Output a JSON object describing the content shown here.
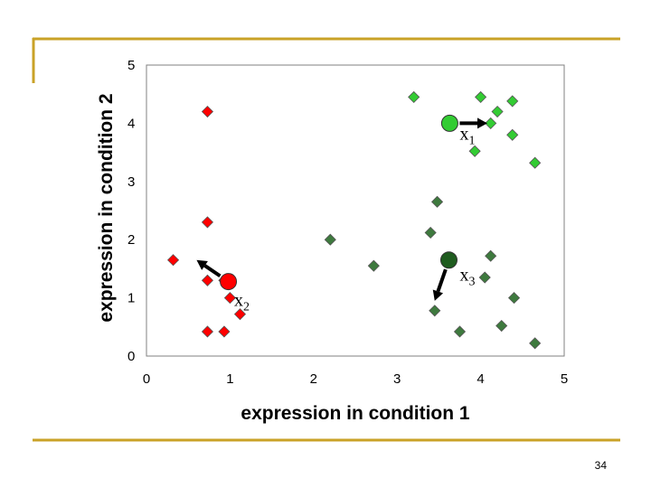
{
  "slide": {
    "page_number": "34",
    "accent_color": "#c9a227"
  },
  "chart_data": {
    "type": "scatter",
    "title": "",
    "xlabel": "expression in condition 1",
    "ylabel": "expression in condition 2",
    "xlim": [
      0,
      5
    ],
    "ylim": [
      0,
      5
    ],
    "x_ticks": [
      0,
      1,
      2,
      3,
      4,
      5
    ],
    "y_ticks": [
      0,
      1,
      2,
      3,
      4,
      5
    ],
    "grid": false,
    "series": [
      {
        "name": "red cluster",
        "marker": "diamond",
        "color": "#ff0000",
        "points": [
          {
            "x": 0.73,
            "y": 4.2
          },
          {
            "x": 0.73,
            "y": 2.3
          },
          {
            "x": 0.32,
            "y": 1.65
          },
          {
            "x": 0.73,
            "y": 1.3
          },
          {
            "x": 0.93,
            "y": 1.3
          },
          {
            "x": 1.0,
            "y": 1.0
          },
          {
            "x": 1.12,
            "y": 0.72
          },
          {
            "x": 0.73,
            "y": 0.42
          },
          {
            "x": 0.93,
            "y": 0.42
          }
        ]
      },
      {
        "name": "light green cluster",
        "marker": "diamond",
        "color": "#33cc33",
        "points": [
          {
            "x": 3.2,
            "y": 4.45
          },
          {
            "x": 4.0,
            "y": 4.45
          },
          {
            "x": 4.38,
            "y": 4.38
          },
          {
            "x": 4.2,
            "y": 4.2
          },
          {
            "x": 4.12,
            "y": 4.0
          },
          {
            "x": 3.93,
            "y": 3.52
          },
          {
            "x": 4.38,
            "y": 3.8
          },
          {
            "x": 4.65,
            "y": 3.32
          }
        ]
      },
      {
        "name": "dark green cluster",
        "marker": "diamond",
        "color": "#3e7a3e",
        "points": [
          {
            "x": 2.2,
            "y": 2.0
          },
          {
            "x": 2.72,
            "y": 1.55
          },
          {
            "x": 3.48,
            "y": 2.65
          },
          {
            "x": 3.4,
            "y": 2.12
          },
          {
            "x": 4.12,
            "y": 1.72
          },
          {
            "x": 4.05,
            "y": 1.35
          },
          {
            "x": 3.45,
            "y": 0.78
          },
          {
            "x": 3.75,
            "y": 0.42
          },
          {
            "x": 4.25,
            "y": 0.52
          },
          {
            "x": 4.4,
            "y": 1.0
          },
          {
            "x": 4.65,
            "y": 0.22
          }
        ]
      }
    ],
    "centroids": [
      {
        "label": "x",
        "sub": "1",
        "x": 3.63,
        "y": 4.0,
        "color": "#33cc33",
        "move_to": {
          "x": 4.08,
          "y": 4.0
        },
        "label_at": {
          "x": 3.75,
          "y": 3.72
        }
      },
      {
        "label": "x",
        "sub": "2",
        "x": 0.98,
        "y": 1.28,
        "color": "#ff0000",
        "move_to": {
          "x": 0.6,
          "y": 1.65
        },
        "label_at": {
          "x": 1.05,
          "y": 0.86
        }
      },
      {
        "label": "x",
        "sub": "3",
        "x": 3.62,
        "y": 1.65,
        "color": "#1f5c1f",
        "move_to": {
          "x": 3.45,
          "y": 0.95
        },
        "label_at": {
          "x": 3.75,
          "y": 1.3
        }
      }
    ]
  }
}
